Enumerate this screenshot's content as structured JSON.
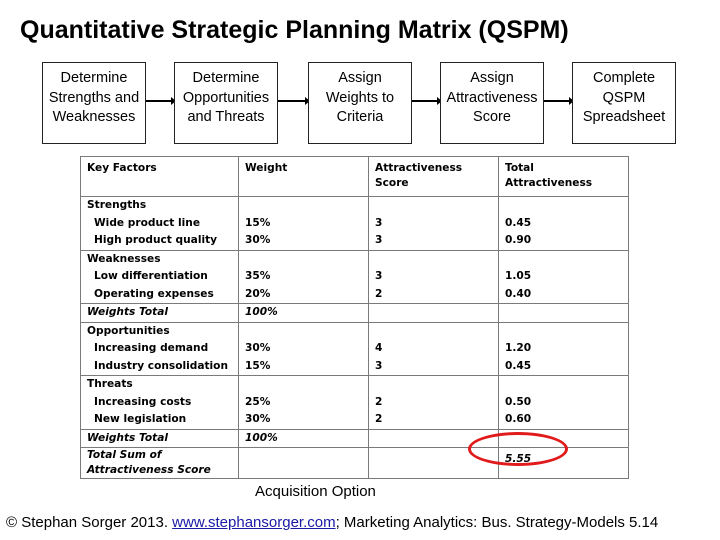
{
  "title": "Quantitative Strategic Planning Matrix (QSPM)",
  "steps": [
    "Determine\nStrengths and\nWeaknesses",
    "Determine\nOpportunities\nand Threats",
    "Assign\nWeights to\nCriteria",
    "Assign\nAttractiveness\nScore",
    "Complete\nQSPM\nSpreadsheet"
  ],
  "table": {
    "headers": [
      "Key Factors",
      "Weight",
      "Attractiveness\nScore",
      "Total\nAttractiveness"
    ],
    "strengths": {
      "label": "Strengths",
      "items": [
        {
          "factor": "Wide product line",
          "weight": "15%",
          "score": "3",
          "total": "0.45"
        },
        {
          "factor": "High product quality",
          "weight": "30%",
          "score": "3",
          "total": "0.90"
        }
      ]
    },
    "weaknesses": {
      "label": "Weaknesses",
      "items": [
        {
          "factor": "Low differentiation",
          "weight": "35%",
          "score": "3",
          "total": "1.05"
        },
        {
          "factor": "Operating expenses",
          "weight": "20%",
          "score": "2",
          "total": "0.40"
        }
      ]
    },
    "weights_total_1": {
      "label": "Weights Total",
      "value": "100%"
    },
    "opportunities": {
      "label": "Opportunities",
      "items": [
        {
          "factor": "Increasing demand",
          "weight": "30%",
          "score": "4",
          "total": "1.20"
        },
        {
          "factor": "Industry consolidation",
          "weight": "15%",
          "score": "3",
          "total": "0.45"
        }
      ]
    },
    "threats": {
      "label": "Threats",
      "items": [
        {
          "factor": "Increasing costs",
          "weight": "25%",
          "score": "2",
          "total": "0.50"
        },
        {
          "factor": "New legislation",
          "weight": "30%",
          "score": "2",
          "total": "0.60"
        }
      ]
    },
    "weights_total_2": {
      "label": "Weights Total",
      "value": "100%"
    },
    "total_sum": {
      "label_line1": "Total Sum of",
      "label_line2": "Attractiveness Score",
      "value": "5.55"
    }
  },
  "caption": "Acquisition Option",
  "footer": {
    "prefix": "© Stephan Sorger 2013. ",
    "link": "www.stephansorger.com",
    "suffix": "; Marketing Analytics: Bus. Strategy-Models 5.14"
  },
  "colors": {
    "highlight_circle": "#e11b1b",
    "border": "#7a7a7a"
  }
}
